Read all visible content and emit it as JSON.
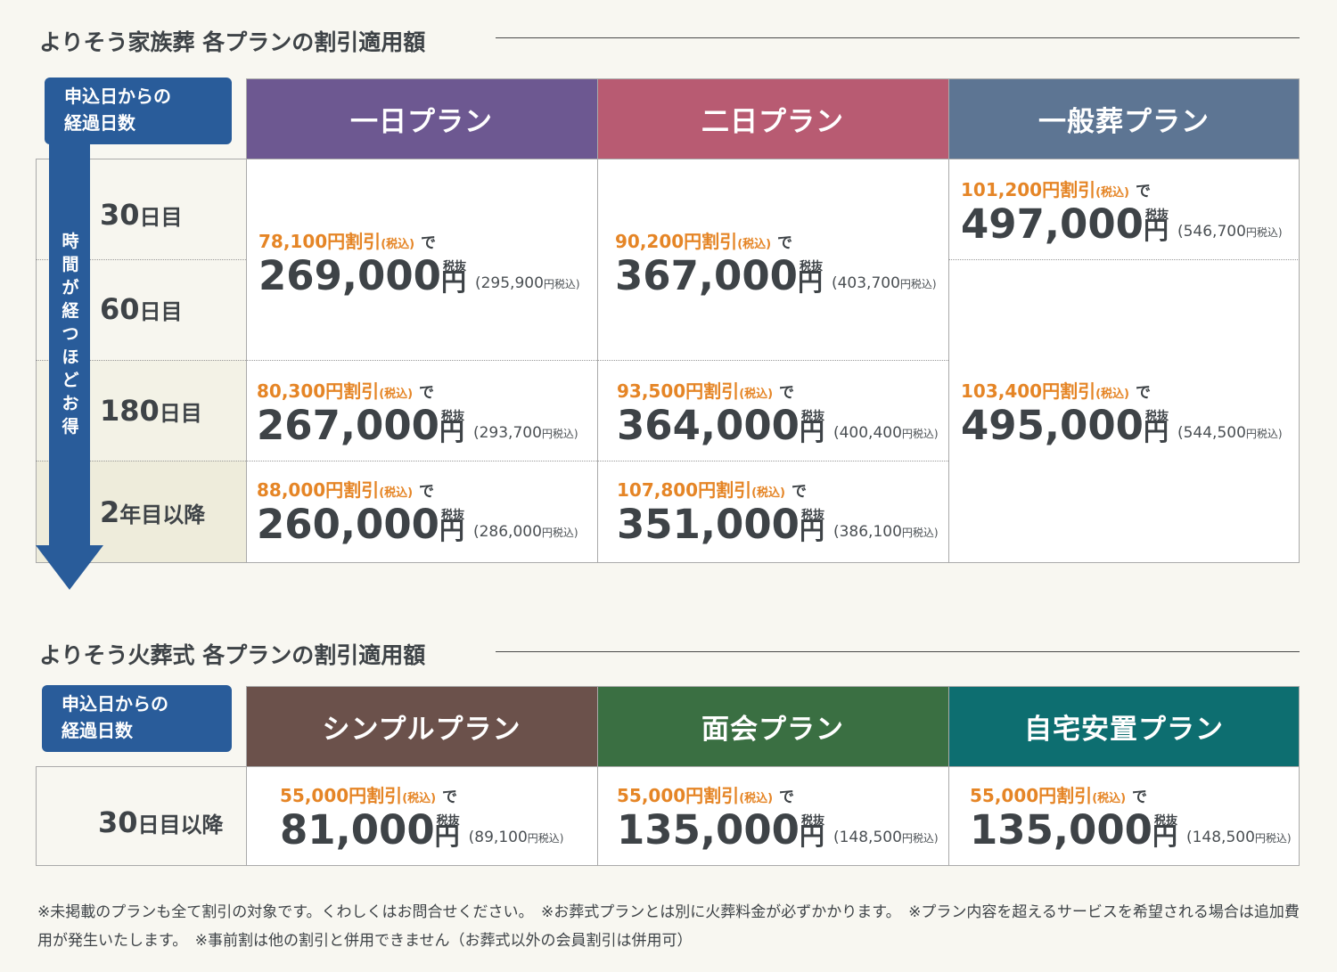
{
  "family": {
    "title": "よりそう家族葬 各プランの割引適用額",
    "tag": [
      "申込日からの",
      "経過日数"
    ],
    "arrow_text": "時間が経つほどお得",
    "plans": [
      {
        "name": "一日プラン",
        "color": "#6d5891"
      },
      {
        "name": "二日プラン",
        "color": "#b85b72"
      },
      {
        "name": "一般葬プラン",
        "color": "#5d7593"
      }
    ],
    "rows": [
      {
        "num": "30",
        "suf": "日目"
      },
      {
        "num": "60",
        "suf": "日目"
      },
      {
        "num": "180",
        "suf": "日目"
      },
      {
        "num": "2",
        "suf": "年目以降"
      }
    ],
    "prices": {
      "p1": {
        "disc": "78,100円割引",
        "big": "269,000",
        "incl": "(295,900"
      },
      "p2": {
        "disc": "80,300円割引",
        "big": "267,000",
        "incl": "(293,700"
      },
      "p3": {
        "disc": "88,000円割引",
        "big": "260,000",
        "incl": "(286,000"
      },
      "p4": {
        "disc": "90,200円割引",
        "big": "367,000",
        "incl": "(403,700"
      },
      "p5": {
        "disc": "93,500円割引",
        "big": "364,000",
        "incl": "(400,400"
      },
      "p6": {
        "disc": "107,800円割引",
        "big": "351,000",
        "incl": "(386,100"
      },
      "p7": {
        "disc": "101,200円割引",
        "big": "497,000",
        "incl": "(546,700"
      },
      "p8": {
        "disc": "103,400円割引",
        "big": "495,000",
        "incl": "(544,500"
      }
    }
  },
  "cremation": {
    "title": "よりそう火葬式 各プランの割引適用額",
    "tag": [
      "申込日からの",
      "経過日数"
    ],
    "plans": [
      {
        "name": "シンプルプラン",
        "color": "#6b514b"
      },
      {
        "name": "面会プラン",
        "color": "#3a6f42"
      },
      {
        "name": "自宅安置プラン",
        "color": "#0d6e70"
      }
    ],
    "row": {
      "num": "30",
      "suf": "日目以降"
    },
    "prices": {
      "c1": {
        "disc": "55,000円割引",
        "big": "81,000",
        "incl": "(89,100"
      },
      "c2": {
        "disc": "55,000円割引",
        "big": "135,000",
        "incl": "(148,500"
      },
      "c3": {
        "disc": "55,000円割引",
        "big": "135,000",
        "incl": "(148,500"
      }
    }
  },
  "labels": {
    "tax_in": "(税込)",
    "de": "で",
    "zeinuki": "税抜",
    "yen": "円",
    "yen_small": "円",
    "tax_in_close": "税込)"
  },
  "footnote": "※未掲載のプランも全て割引の対象です。くわしくはお問合せください。　※お葬式プランとは別に火葬料金が必ずかかります。　※プラン内容を超えるサービスを希望される場合は追加費用が発生いたします。　※事前割は他の割引と併用できません（お葬式以外の会員割引は併用可）"
}
